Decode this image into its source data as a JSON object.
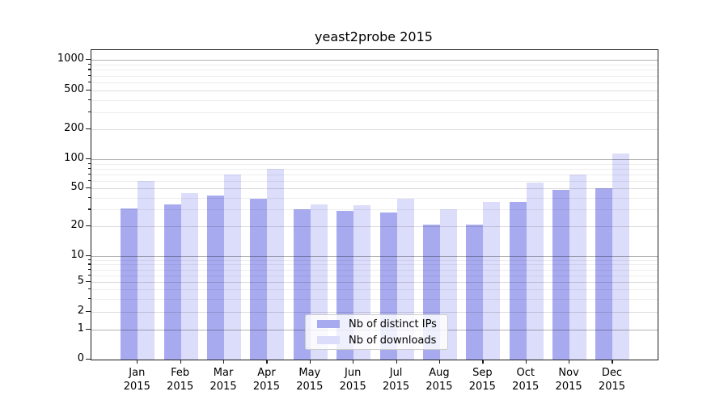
{
  "figure": {
    "background": "#ffffff"
  },
  "chart_data": {
    "type": "bar",
    "title": "yeast2probe 2015",
    "scale": "symlog",
    "grid": true,
    "categories": [
      "Jan 2015",
      "Feb 2015",
      "Mar 2015",
      "Apr 2015",
      "May 2015",
      "Jun 2015",
      "Jul 2015",
      "Aug 2015",
      "Sep 2015",
      "Oct 2015",
      "Nov 2015",
      "Dec 2015"
    ],
    "series": [
      {
        "name": "Nb of distinct IPs",
        "color": "#a8aaf0",
        "values": [
          31,
          34,
          42,
          39,
          30,
          29,
          28,
          21,
          21,
          36,
          48,
          50
        ]
      },
      {
        "name": "Nb of downloads",
        "color": "#dcddfa",
        "values": [
          60,
          45,
          70,
          80,
          34,
          33,
          39,
          30,
          36,
          57,
          70,
          115
        ]
      }
    ],
    "y_axis": {
      "ticks": [
        0,
        1,
        2,
        5,
        10,
        20,
        50,
        100,
        200,
        500,
        1000
      ],
      "minor_ticks": [
        3,
        4,
        6,
        7,
        8,
        9,
        30,
        40,
        60,
        70,
        80,
        90,
        300,
        400,
        600,
        700,
        800,
        900
      ],
      "range": [
        0,
        1200
      ]
    },
    "legend": {
      "position": "lower center",
      "entries": [
        "Nb of distinct IPs",
        "Nb of downloads"
      ]
    }
  }
}
